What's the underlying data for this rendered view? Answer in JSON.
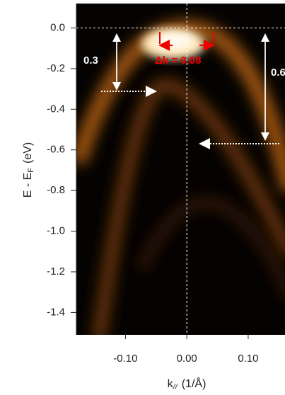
{
  "chart_data": {
    "type": "image",
    "xlabel": "k",
    "xlabel_sub": "//",
    "xlabel_unit": "(1/Å)",
    "ylabel": "E - E",
    "ylabel_sub": "F",
    "ylabel_unit": "(eV)",
    "xlim": [
      -0.18,
      0.16
    ],
    "ylim": [
      -1.51,
      0.12
    ],
    "xticks": [
      {
        "value": -0.1,
        "label": "-0.10"
      },
      {
        "value": 0,
        "label": "0.00"
      },
      {
        "value": 0.1,
        "label": "0.10"
      }
    ],
    "yticks": [
      {
        "value": 0,
        "label": "0.0"
      },
      {
        "value": -0.2,
        "label": "-0.2"
      },
      {
        "value": -0.4,
        "label": "-0.4"
      },
      {
        "value": -0.6,
        "label": "-0.6"
      },
      {
        "value": -0.8,
        "label": "-0.8"
      },
      {
        "value": -1.0,
        "label": "-1.0"
      },
      {
        "value": -1.2,
        "label": "-1.2"
      },
      {
        "value": -1.4,
        "label": "-1.4"
      }
    ],
    "annotations": [
      "0.3",
      "Δk = 0.08",
      "0.6"
    ]
  }
}
